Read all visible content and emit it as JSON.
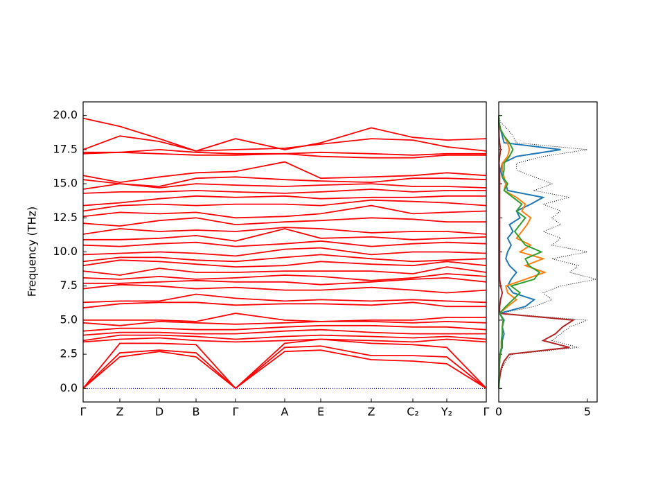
{
  "chart_data": [
    {
      "type": "line",
      "ylabel": "Frequency (THz)",
      "ylim": [
        -1.0,
        21.0
      ],
      "yticks": [
        {
          "value": 0,
          "label": "0.0"
        },
        {
          "value": 2.5,
          "label": "2.5"
        },
        {
          "value": 5,
          "label": "5.0"
        },
        {
          "value": 7.5,
          "label": "7.5"
        },
        {
          "value": 10,
          "label": "10.0"
        },
        {
          "value": 12.5,
          "label": "12.5"
        },
        {
          "value": 15,
          "label": "15.0"
        },
        {
          "value": 17.5,
          "label": "17.5"
        },
        {
          "value": 20,
          "label": "20.0"
        }
      ],
      "xlim": [
        0,
        5.82
      ],
      "x": [
        0,
        0.53,
        1.1,
        1.63,
        2.2,
        2.91,
        3.43,
        4.16,
        4.76,
        5.25,
        5.82
      ],
      "xticks": [
        {
          "value": 0,
          "label": "Γ"
        },
        {
          "value": 0.53,
          "label": "Z"
        },
        {
          "value": 1.1,
          "label": "D"
        },
        {
          "value": 1.63,
          "label": "B"
        },
        {
          "value": 2.2,
          "label": "Γ"
        },
        {
          "value": 2.91,
          "label": "A"
        },
        {
          "value": 3.43,
          "label": "E"
        },
        {
          "value": 4.16,
          "label": "Z"
        },
        {
          "value": 4.76,
          "label": "C₂"
        },
        {
          "value": 5.25,
          "label": "Y₂"
        },
        {
          "value": 5.82,
          "label": "Γ"
        }
      ],
      "color": "#ff0000",
      "hlines": [
        {
          "value": 0,
          "color": "#0000ff"
        }
      ],
      "series": [
        {
          "values": [
            0,
            2.3,
            2.7,
            2.3,
            0,
            2.7,
            2.8,
            2.1,
            2.0,
            1.8,
            0
          ]
        },
        {
          "values": [
            0,
            2.6,
            2.8,
            2.6,
            0,
            3.0,
            3.1,
            2.4,
            2.4,
            2.3,
            0
          ]
        },
        {
          "values": [
            0,
            3.3,
            3.3,
            3.2,
            0,
            3.3,
            3.6,
            3.3,
            3.2,
            3.0,
            0
          ]
        },
        {
          "values": [
            3.4,
            3.6,
            3.7,
            3.5,
            3.4,
            3.5,
            3.6,
            3.5,
            3.4,
            3.6,
            3.4
          ]
        },
        {
          "values": [
            3.5,
            3.9,
            3.9,
            3.8,
            3.6,
            3.8,
            3.9,
            3.8,
            3.7,
            3.8,
            3.6
          ]
        },
        {
          "values": [
            3.9,
            4.1,
            4.1,
            4.0,
            4.0,
            4.2,
            4.3,
            4.1,
            4.0,
            4.0,
            4.0
          ]
        },
        {
          "values": [
            4.2,
            4.4,
            4.4,
            4.3,
            4.3,
            4.5,
            4.6,
            4.6,
            4.5,
            4.5,
            4.3
          ]
        },
        {
          "values": [
            4.8,
            4.6,
            4.9,
            4.8,
            4.7,
            4.8,
            4.9,
            4.9,
            4.8,
            4.9,
            4.8
          ]
        },
        {
          "values": [
            5.0,
            5.0,
            5.0,
            4.9,
            5.5,
            5.0,
            4.9,
            5.0,
            5.0,
            5.2,
            5.2
          ]
        },
        {
          "values": [
            5.9,
            6.2,
            6.3,
            6.3,
            6.1,
            6.2,
            6.2,
            6.1,
            6.3,
            6.0,
            6.0
          ]
        },
        {
          "values": [
            6.3,
            6.4,
            6.4,
            6.9,
            6.6,
            6.4,
            6.5,
            6.4,
            6.5,
            6.4,
            6.3
          ]
        },
        {
          "values": [
            7.3,
            7.6,
            7.5,
            7.3,
            7.4,
            7.2,
            7.2,
            7.4,
            7.2,
            7.0,
            7.2
          ]
        },
        {
          "values": [
            7.7,
            7.7,
            7.8,
            7.9,
            7.8,
            7.8,
            7.6,
            7.8,
            8.0,
            8.1,
            7.8
          ]
        },
        {
          "values": [
            8.1,
            8.0,
            8.2,
            8.0,
            8.1,
            8.3,
            8.2,
            7.9,
            8.1,
            8.4,
            8.2
          ]
        },
        {
          "values": [
            8.6,
            8.3,
            8.8,
            8.5,
            8.5,
            8.6,
            8.6,
            8.6,
            8.4,
            8.9,
            8.5
          ]
        },
        {
          "values": [
            9.0,
            9.4,
            9.3,
            9.1,
            8.9,
            9.0,
            9.3,
            9.1,
            9.0,
            9.3,
            9.0
          ]
        },
        {
          "values": [
            9.3,
            9.6,
            9.6,
            9.4,
            9.3,
            9.6,
            9.8,
            9.5,
            9.3,
            9.4,
            9.5
          ]
        },
        {
          "values": [
            9.8,
            9.9,
            10.0,
            9.9,
            9.7,
            10.2,
            10.3,
            9.8,
            10.0,
            10.0,
            9.9
          ]
        },
        {
          "values": [
            10.5,
            10.4,
            10.6,
            10.7,
            10.4,
            10.6,
            10.8,
            10.4,
            10.6,
            10.7,
            10.6
          ]
        },
        {
          "values": [
            10.9,
            10.9,
            11.0,
            11.2,
            10.8,
            11.7,
            11.0,
            11.1,
            10.9,
            11.0,
            11.1
          ]
        },
        {
          "values": [
            11.3,
            11.7,
            11.5,
            11.6,
            11.5,
            11.8,
            11.7,
            11.4,
            11.5,
            11.5,
            11.3
          ]
        },
        {
          "values": [
            12.1,
            11.9,
            12.3,
            12.5,
            12.0,
            12.2,
            12.3,
            12.5,
            12.4,
            12.2,
            12.2
          ]
        },
        {
          "values": [
            12.6,
            12.9,
            12.8,
            12.9,
            12.5,
            12.6,
            12.8,
            13.4,
            12.8,
            12.9,
            13.0
          ]
        },
        {
          "values": [
            13.0,
            13.4,
            13.5,
            13.4,
            13.5,
            13.5,
            13.4,
            13.8,
            13.7,
            13.6,
            13.4
          ]
        },
        {
          "values": [
            13.4,
            13.6,
            13.9,
            14.1,
            14.0,
            14.1,
            13.9,
            14.0,
            14.0,
            14.1,
            14.1
          ]
        },
        {
          "values": [
            14.3,
            14.4,
            14.4,
            14.5,
            14.4,
            14.3,
            14.4,
            14.6,
            14.4,
            14.5,
            14.5
          ]
        },
        {
          "values": [
            14.6,
            15.0,
            14.7,
            15.0,
            14.9,
            14.8,
            14.9,
            15.0,
            14.8,
            14.8,
            14.7
          ]
        },
        {
          "values": [
            15.3,
            15.0,
            14.8,
            15.4,
            15.5,
            15.3,
            15.2,
            15.1,
            15.4,
            15.4,
            15.3
          ]
        },
        {
          "values": [
            15.6,
            15.1,
            15.5,
            15.8,
            15.9,
            16.6,
            15.4,
            15.5,
            15.6,
            15.8,
            15.6
          ]
        },
        {
          "values": [
            17.2,
            17.3,
            17.2,
            17.1,
            17.1,
            17.2,
            17.0,
            16.9,
            16.9,
            17.1,
            17.1
          ]
        },
        {
          "values": [
            17.3,
            17.3,
            17.5,
            17.3,
            17.2,
            17.2,
            17.3,
            17.2,
            17.1,
            17.2,
            17.2
          ]
        },
        {
          "values": [
            17.5,
            18.5,
            18.1,
            17.4,
            17.5,
            17.6,
            17.9,
            18.3,
            18.2,
            17.7,
            17.4
          ]
        },
        {
          "values": [
            19.8,
            19.2,
            18.3,
            17.4,
            18.3,
            17.5,
            18.0,
            19.1,
            18.4,
            18.2,
            18.3
          ]
        }
      ]
    },
    {
      "type": "dos",
      "xlim": [
        0,
        5.55
      ],
      "xticks": [
        0,
        5
      ],
      "y": [
        0,
        0.5,
        1,
        1.5,
        2,
        2.5,
        3,
        3.5,
        4,
        4.5,
        5,
        5.5,
        6,
        6.5,
        7,
        7.5,
        8,
        8.5,
        9,
        9.5,
        10,
        10.5,
        11,
        11.5,
        12,
        12.5,
        13,
        13.5,
        14,
        14.5,
        15,
        15.5,
        16,
        16.5,
        17,
        17.5,
        18,
        18.5,
        19,
        19.5,
        20
      ],
      "series": [
        {
          "color": "#000000",
          "style": "dotted",
          "values": [
            0,
            0.05,
            0.1,
            0.2,
            0.4,
            0.8,
            4.5,
            3,
            3.5,
            4,
            5,
            0.1,
            2,
            3,
            2.5,
            3.5,
            5.5,
            4,
            4.5,
            3,
            5,
            3,
            3.5,
            2.5,
            3.5,
            3,
            3.5,
            2.5,
            4,
            2,
            3,
            2,
            1,
            1,
            2.5,
            5,
            1,
            0.8,
            0.5,
            0.1,
            0
          ]
        },
        {
          "color": "#b22222",
          "style": "solid",
          "values": [
            0,
            0.03,
            0.08,
            0.15,
            0.3,
            0.6,
            4,
            2.5,
            3.2,
            3.6,
            4.2,
            0.05,
            0.05,
            0.1,
            0.2,
            0.1,
            0.05,
            0.05,
            0.05,
            0.05,
            0.05,
            0.05,
            0.05,
            0.05,
            0.05,
            0.05,
            0.05,
            0.05,
            0.05,
            0.05,
            0.05,
            0.05,
            0.05,
            0.02,
            0.05,
            0.1,
            0.05,
            0.02,
            0.01,
            0,
            0
          ]
        },
        {
          "color": "#1f77b4",
          "style": "solid",
          "values": [
            0,
            0.01,
            0.02,
            0.03,
            0.05,
            0.08,
            0.2,
            0.2,
            0.3,
            0.2,
            0.3,
            0.05,
            1.5,
            2,
            0.8,
            0.5,
            0.7,
            1,
            0.6,
            0.4,
            0.5,
            0.7,
            0.5,
            0.8,
            0.6,
            1.2,
            1,
            1.8,
            2.5,
            0.5,
            0.4,
            0.2,
            0.1,
            0.2,
            1,
            3.5,
            0.3,
            0.2,
            0.1,
            0.02,
            0
          ]
        },
        {
          "color": "#ff7f0e",
          "style": "solid",
          "values": [
            0,
            0.01,
            0.02,
            0.03,
            0.05,
            0.08,
            0.15,
            0.15,
            0.2,
            0.2,
            0.25,
            0.05,
            0.5,
            1,
            0.5,
            0.4,
            1.5,
            2.6,
            1.5,
            2.5,
            1.2,
            1.8,
            1,
            1.3,
            1.6,
            1.8,
            1.3,
            1.5,
            1,
            0.3,
            0.4,
            0.3,
            0.2,
            0.2,
            0.5,
            0.6,
            0.5,
            0.3,
            0.1,
            0.02,
            0
          ]
        },
        {
          "color": "#2ca02c",
          "style": "solid",
          "values": [
            0,
            0.01,
            0.02,
            0.03,
            0.05,
            0.08,
            0.15,
            0.15,
            0.2,
            0.2,
            0.25,
            0.05,
            0.4,
            0.8,
            1.2,
            0.7,
            2,
            2.3,
            1.7,
            1.5,
            2.4,
            1.5,
            1.2,
            0.9,
            1.2,
            1.5,
            1,
            1.3,
            0.8,
            0.3,
            0.5,
            0.2,
            0.3,
            0.3,
            0.6,
            0.8,
            0.6,
            0.3,
            0.1,
            0.02,
            0
          ]
        }
      ]
    }
  ]
}
